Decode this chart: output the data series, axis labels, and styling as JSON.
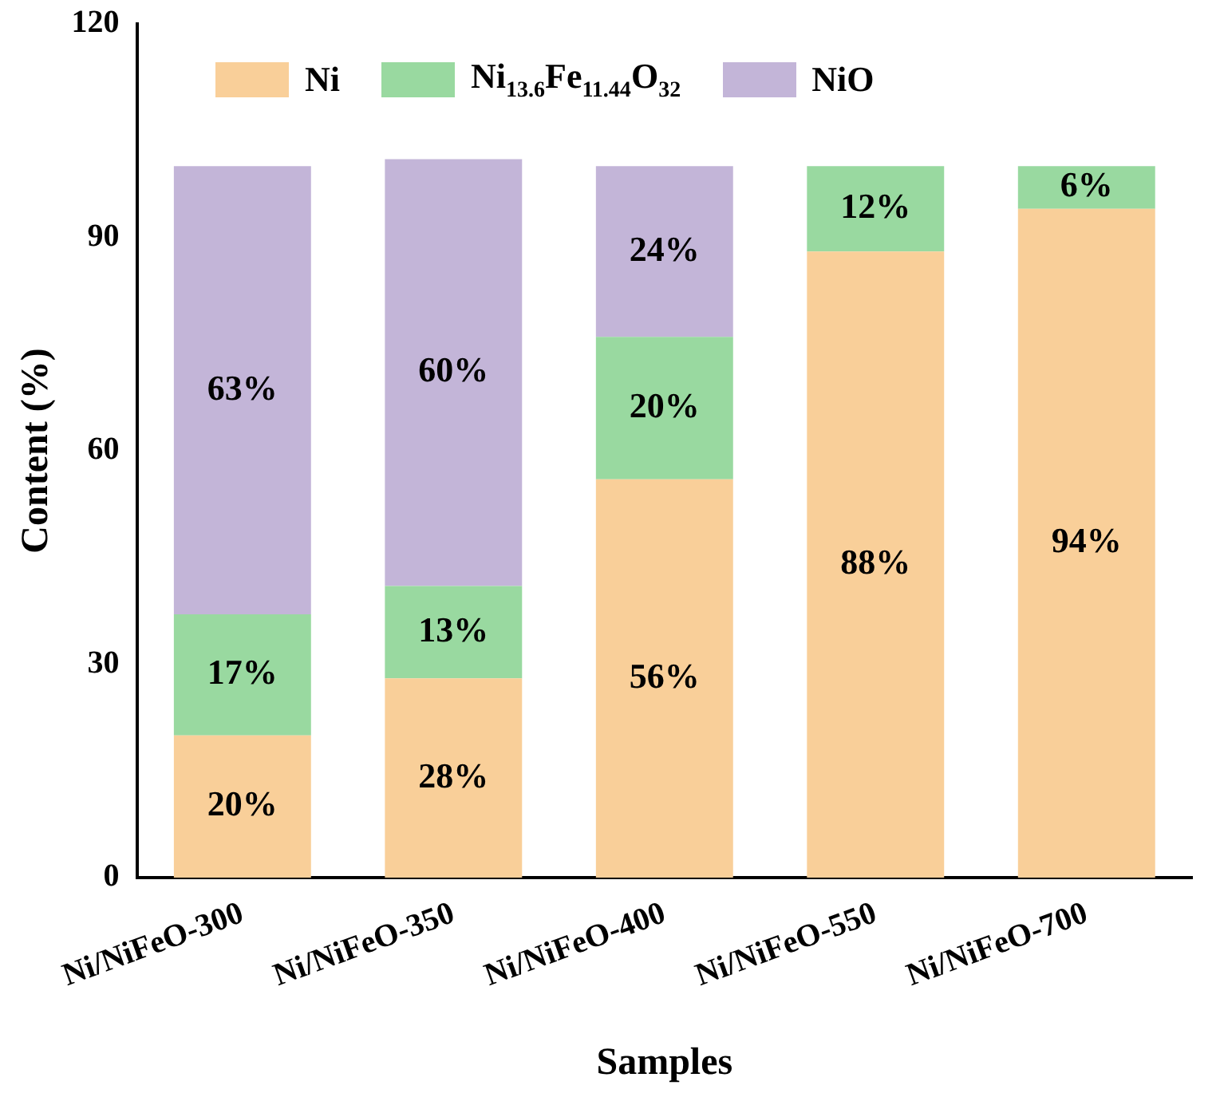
{
  "chart_data": {
    "type": "bar",
    "stacked": true,
    "xlabel": "Samples",
    "ylabel": "Content (%)",
    "categories": [
      "Ni/NiFeO-300",
      "Ni/NiFeO-350",
      "Ni/NiFeO-400",
      "Ni/NiFeO-550",
      "Ni/NiFeO-700"
    ],
    "series": [
      {
        "name": "Ni",
        "color": "#f9cf99",
        "values": [
          20,
          28,
          56,
          88,
          94
        ],
        "value_labels": [
          "20%",
          "28%",
          "56%",
          "88%",
          "94%"
        ]
      },
      {
        "name": "Ni$_{13.6}$Fe$_{11.44}$O$_{32}$",
        "color": "#99d9a0",
        "values": [
          17,
          13,
          20,
          12,
          6
        ],
        "value_labels": [
          "17%",
          "13%",
          "20%",
          "12%",
          "6%"
        ]
      },
      {
        "name": "NiO",
        "color": "#c3b5d8",
        "values": [
          63,
          60,
          24,
          null,
          null
        ],
        "value_labels": [
          "63%",
          "60%",
          "24%",
          null,
          null
        ]
      }
    ],
    "ylim": [
      0,
      120
    ],
    "yticks": [
      0,
      30,
      60,
      90,
      120
    ],
    "grid": false,
    "legend": "top left"
  }
}
